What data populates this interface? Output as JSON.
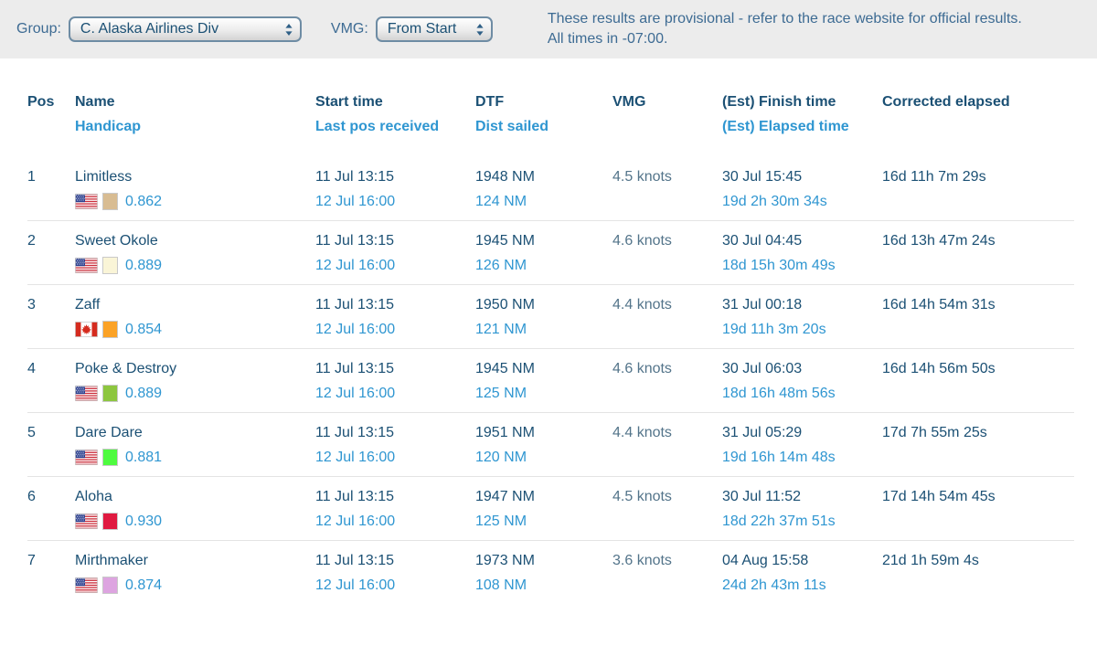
{
  "topbar": {
    "group_label": "Group:",
    "group_value": "C. Alaska Airlines Div",
    "vmg_label": "VMG:",
    "vmg_value": "From Start",
    "notice_line1": "These results are provisional - refer to the race website for official results.",
    "notice_line2": "All times in -07:00."
  },
  "table": {
    "headers": {
      "pos": "Pos",
      "name": "Name",
      "name_sub": "Handicap",
      "start_time": "Start time",
      "start_sub": "Last pos received",
      "dtf": "DTF",
      "dtf_sub": "Dist sailed",
      "vmg": "VMG",
      "finish": "(Est) Finish time",
      "finish_sub": "(Est) Elapsed time",
      "corrected": "Corrected elapsed"
    },
    "rows": [
      {
        "pos": "1",
        "name": "Limitless",
        "flag": "us",
        "color": "#d8bc92",
        "handicap": "0.862",
        "start_time": "11 Jul 13:15",
        "last_pos": "12 Jul 16:00",
        "dtf": "1948 NM",
        "dist_sailed": "124 NM",
        "vmg": "4.5 knots",
        "finish_time": "30 Jul 15:45",
        "elapsed_time": "19d 2h 30m 34s",
        "corrected": "16d 11h 7m 29s"
      },
      {
        "pos": "2",
        "name": "Sweet Okole",
        "flag": "us",
        "color": "#faf5d7",
        "handicap": "0.889",
        "start_time": "11 Jul 13:15",
        "last_pos": "12 Jul 16:00",
        "dtf": "1945 NM",
        "dist_sailed": "126 NM",
        "vmg": "4.6 knots",
        "finish_time": "30 Jul 04:45",
        "elapsed_time": "18d 15h 30m 49s",
        "corrected": "16d 13h 47m 24s"
      },
      {
        "pos": "3",
        "name": "Zaff",
        "flag": "ca",
        "color": "#fba226",
        "handicap": "0.854",
        "start_time": "11 Jul 13:15",
        "last_pos": "12 Jul 16:00",
        "dtf": "1950 NM",
        "dist_sailed": "121 NM",
        "vmg": "4.4 knots",
        "finish_time": "31 Jul 00:18",
        "elapsed_time": "19d 11h 3m 20s",
        "corrected": "16d 14h 54m 31s"
      },
      {
        "pos": "4",
        "name": "Poke & Destroy",
        "flag": "us",
        "color": "#8dc63f",
        "handicap": "0.889",
        "start_time": "11 Jul 13:15",
        "last_pos": "12 Jul 16:00",
        "dtf": "1945 NM",
        "dist_sailed": "125 NM",
        "vmg": "4.6 knots",
        "finish_time": "30 Jul 06:03",
        "elapsed_time": "18d 16h 48m 56s",
        "corrected": "16d 14h 56m 50s"
      },
      {
        "pos": "5",
        "name": "Dare Dare",
        "flag": "us",
        "color": "#4efb3f",
        "handicap": "0.881",
        "start_time": "11 Jul 13:15",
        "last_pos": "12 Jul 16:00",
        "dtf": "1951 NM",
        "dist_sailed": "120 NM",
        "vmg": "4.4 knots",
        "finish_time": "31 Jul 05:29",
        "elapsed_time": "19d 16h 14m 48s",
        "corrected": "17d 7h 55m 25s"
      },
      {
        "pos": "6",
        "name": "Aloha",
        "flag": "us",
        "color": "#e01a40",
        "handicap": "0.930",
        "start_time": "11 Jul 13:15",
        "last_pos": "12 Jul 16:00",
        "dtf": "1947 NM",
        "dist_sailed": "125 NM",
        "vmg": "4.5 knots",
        "finish_time": "30 Jul 11:52",
        "elapsed_time": "18d 22h 37m 51s",
        "corrected": "17d 14h 54m 45s"
      },
      {
        "pos": "7",
        "name": "Mirthmaker",
        "flag": "us",
        "color": "#dda4e0",
        "handicap": "0.874",
        "start_time": "11 Jul 13:15",
        "last_pos": "12 Jul 16:00",
        "dtf": "1973 NM",
        "dist_sailed": "108 NM",
        "vmg": "3.6 knots",
        "finish_time": "04 Aug 15:58",
        "elapsed_time": "24d 2h 43m 11s",
        "corrected": "21d 1h 59m 4s"
      }
    ]
  },
  "icons": {
    "select_arrows": "up-down-stepper-arrows",
    "us_flag": "united-states-flag",
    "ca_flag": "canada-flag",
    "swatch": "boat-color-swatch"
  },
  "colors": {
    "accent_dark": "#1b5074",
    "accent_light": "#2f96d1",
    "knots_text": "#53748a",
    "topbar_text": "#3d6b93",
    "topbar_bg": "#ececec",
    "row_divider": "#e4e4e4",
    "select_border": "#6e8ca4",
    "flag_us_red": "#cb2d3a",
    "flag_us_blue": "#2b3f8e",
    "flag_ca_red": "#d52b1e"
  }
}
